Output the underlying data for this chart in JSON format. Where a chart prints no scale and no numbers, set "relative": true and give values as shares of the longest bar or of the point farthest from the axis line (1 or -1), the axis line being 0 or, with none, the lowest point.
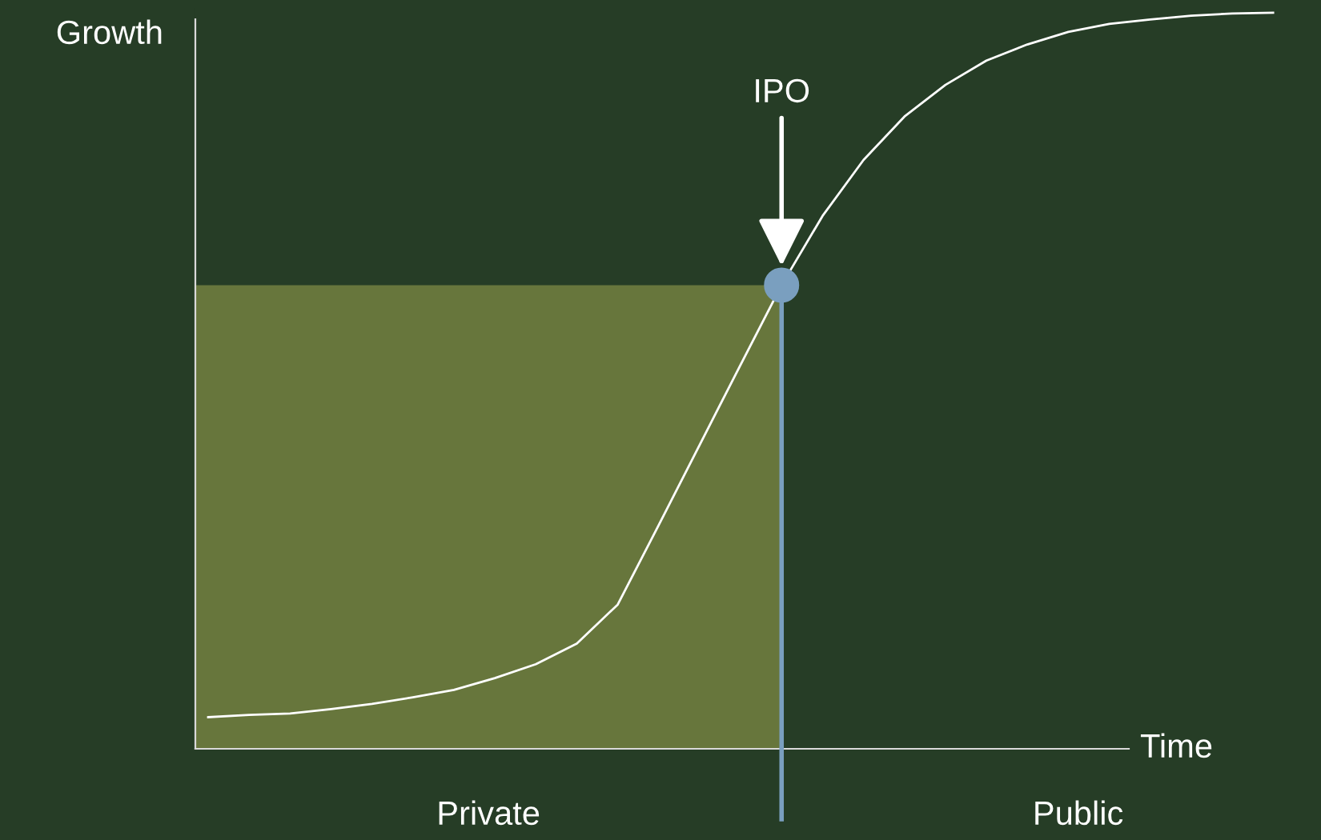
{
  "chart_data": {
    "type": "line",
    "relative": true,
    "xlabel": "Time",
    "ylabel": "Growth",
    "categories": [
      null,
      null,
      null,
      null,
      null,
      null,
      null,
      null,
      null,
      null,
      null,
      null,
      null,
      null,
      null,
      null,
      null,
      null,
      null,
      null,
      null,
      null,
      null,
      null,
      null,
      null,
      null
    ],
    "series": [
      {
        "color": "#ffffff",
        "values": [
          0.043,
          0.046,
          0.048,
          0.054,
          0.061,
          0.07,
          0.08,
          0.096,
          0.115,
          0.143,
          0.196,
          0.304,
          0.413,
          0.522,
          0.63,
          0.724,
          0.8,
          0.859,
          0.902,
          0.935,
          0.957,
          0.974,
          0.985,
          0.991,
          0.996,
          0.999,
          1
        ]
      }
    ],
    "annotations": [
      "IPO",
      "Private",
      "Public"
    ],
    "marker": "none",
    "legend": false
  }
}
